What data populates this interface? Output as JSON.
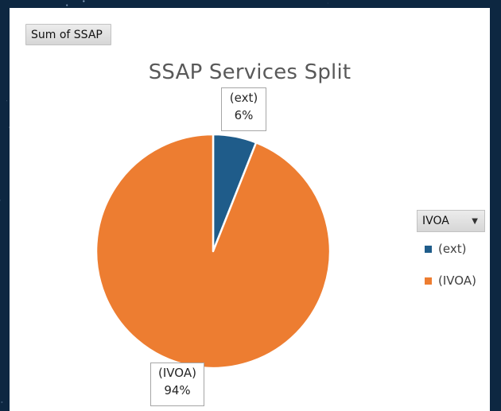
{
  "field_button": {
    "label": "Sum of SSAP"
  },
  "chart_data": {
    "type": "pie",
    "title": "SSAP Services Split",
    "categories": [
      "(ext)",
      "(IVOA)"
    ],
    "values": [
      6,
      94
    ],
    "data_labels": [
      {
        "name": "(ext)",
        "value": "6%"
      },
      {
        "name": "(IVOA)",
        "value": "94%"
      }
    ],
    "colors": [
      "#1f5c8a",
      "#ed7d31"
    ],
    "legend_position": "right"
  },
  "legend": {
    "filter_label": "IVOA",
    "items": [
      "(ext)",
      "(IVOA)"
    ]
  }
}
